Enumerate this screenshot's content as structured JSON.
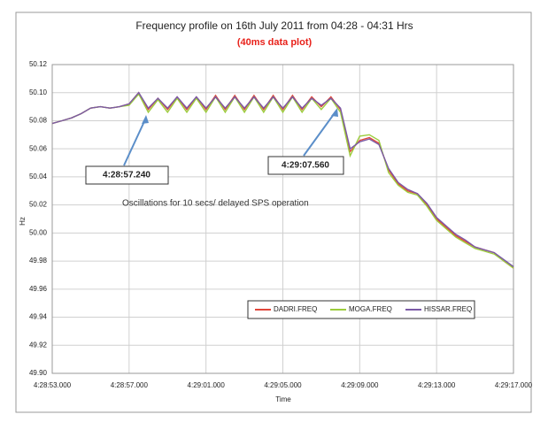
{
  "chart_data": {
    "type": "line",
    "title": "Frequency profile on  16th July 2011 from 04:28 - 04:31 Hrs",
    "subtitle": "(40ms data plot)",
    "xlabel": "Time",
    "ylabel": "Hz",
    "x": [
      "4:28:53.0",
      "4:28:53.5",
      "4:28:54.0",
      "4:28:54.5",
      "4:28:55.0",
      "4:28:55.5",
      "4:28:56.0",
      "4:28:56.5",
      "4:28:57.0",
      "4:28:57.5",
      "4:28:58.0",
      "4:28:58.5",
      "4:28:59.0",
      "4:28:59.5",
      "4:29:00.0",
      "4:29:00.5",
      "4:29:01.0",
      "4:29:01.5",
      "4:29:02.0",
      "4:29:02.5",
      "4:29:03.0",
      "4:29:03.5",
      "4:29:04.0",
      "4:29:04.5",
      "4:29:05.0",
      "4:29:05.5",
      "4:29:06.0",
      "4:29:06.5",
      "4:29:07.0",
      "4:29:07.5",
      "4:29:08.0",
      "4:29:08.5",
      "4:29:09.0",
      "4:29:09.5",
      "4:29:10.0",
      "4:29:10.5",
      "4:29:11.0",
      "4:29:11.5",
      "4:29:12.0",
      "4:29:12.5",
      "4:29:13.0",
      "4:29:13.5",
      "4:29:14.0",
      "4:29:14.5",
      "4:29:15.0",
      "4:29:15.5",
      "4:29:16.0",
      "4:29:16.5",
      "4:29:17.0"
    ],
    "series": [
      {
        "name": "DADRI.FREQ",
        "color": "#e0463a",
        "values": [
          50.078,
          50.08,
          50.082,
          50.085,
          50.089,
          50.09,
          50.089,
          50.09,
          50.092,
          50.1,
          50.088,
          50.096,
          50.088,
          50.097,
          50.088,
          50.097,
          50.088,
          50.098,
          50.088,
          50.098,
          50.088,
          50.098,
          50.088,
          50.098,
          50.088,
          50.098,
          50.088,
          50.097,
          50.09,
          50.097,
          50.088,
          50.058,
          50.066,
          50.068,
          50.064,
          50.045,
          50.035,
          50.03,
          50.028,
          50.02,
          50.01,
          50.004,
          49.998,
          49.994,
          49.99,
          49.988,
          49.986,
          49.98,
          49.975
        ]
      },
      {
        "name": "MOGA.FREQ",
        "color": "#9ccc3c",
        "values": [
          50.078,
          50.08,
          50.082,
          50.085,
          50.089,
          50.09,
          50.089,
          50.09,
          50.091,
          50.099,
          50.086,
          50.095,
          50.086,
          50.096,
          50.086,
          50.096,
          50.086,
          50.097,
          50.086,
          50.097,
          50.086,
          50.097,
          50.086,
          50.097,
          50.086,
          50.097,
          50.086,
          50.096,
          50.088,
          50.096,
          50.086,
          50.055,
          50.069,
          50.07,
          50.066,
          50.043,
          50.034,
          50.029,
          50.027,
          50.019,
          50.009,
          50.003,
          49.997,
          49.993,
          49.989,
          49.987,
          49.985,
          49.98,
          49.975
        ]
      },
      {
        "name": "HISSAR.FREQ",
        "color": "#7b5aa6",
        "values": [
          50.078,
          50.08,
          50.082,
          50.085,
          50.089,
          50.09,
          50.089,
          50.09,
          50.092,
          50.1,
          50.089,
          50.096,
          50.089,
          50.097,
          50.089,
          50.097,
          50.089,
          50.097,
          50.089,
          50.097,
          50.089,
          50.097,
          50.089,
          50.097,
          50.089,
          50.097,
          50.089,
          50.096,
          50.091,
          50.096,
          50.089,
          50.06,
          50.065,
          50.067,
          50.063,
          50.046,
          50.036,
          50.031,
          50.028,
          50.021,
          50.011,
          50.005,
          49.999,
          49.995,
          49.99,
          49.988,
          49.986,
          49.981,
          49.976
        ]
      }
    ],
    "xlim": [
      "4:28:53.000",
      "4:29:17.000"
    ],
    "xticks": [
      "4:28:53.000",
      "4:28:57.000",
      "4:29:01.000",
      "4:29:05.000",
      "4:29:09.000",
      "4:29:13.000",
      "4:29:17.000"
    ],
    "ylim": [
      49.9,
      50.12
    ],
    "yticks": [
      {
        "value": 49.9,
        "label": "49.90"
      },
      {
        "value": 49.92,
        "label": "49.92"
      },
      {
        "value": 49.94,
        "label": "49.94"
      },
      {
        "value": 49.96,
        "label": "49.96"
      },
      {
        "value": 49.98,
        "label": "49.98"
      },
      {
        "value": 50,
        "label": "50.00"
      },
      {
        "value": 50.02,
        "label": "50.02"
      },
      {
        "value": 50.04,
        "label": "50.04"
      },
      {
        "value": 50.06,
        "label": "50.06"
      },
      {
        "value": 50.08,
        "label": "50.08"
      },
      {
        "value": 50.1,
        "label": "50.10"
      },
      {
        "value": 50.12,
        "label": "50.12"
      }
    ],
    "grid": true,
    "legend": "lower right",
    "annotations": [
      "4:28:57.240",
      "4:29:07.560",
      "Oscillations for 10 secs/ delayed SPS operation"
    ]
  }
}
